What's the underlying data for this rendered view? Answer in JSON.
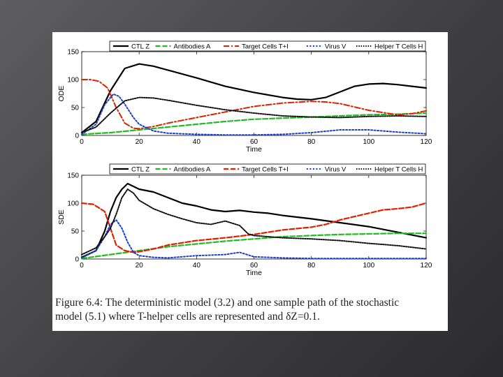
{
  "colors": {
    "ctl": "#000000",
    "antibodies": "#22bb22",
    "target": "#dd2200",
    "virus": "#1a3fcc",
    "helper": "#111111"
  },
  "caption": {
    "line1": "Figure 6.4: The deterministic model (3.2) and one sample path of the stochastic",
    "line2": "model (5.1) where T-helper cells are represented and δZ=0.1."
  },
  "chart_data": [
    {
      "type": "line",
      "xlabel": "Time",
      "ylabel": "ODE",
      "xlim": [
        0,
        120
      ],
      "ylim": [
        0,
        150
      ],
      "xticks": [
        "0",
        "20",
        "40",
        "60",
        "80",
        "100",
        "120"
      ],
      "yticks": [
        "0",
        "50",
        "100",
        "150"
      ],
      "legend": "top",
      "series": [
        {
          "name": "CTL Z",
          "style": "solid",
          "color": "#000000",
          "x": [
            0,
            5,
            10,
            15,
            20,
            25,
            30,
            40,
            50,
            60,
            70,
            75,
            80,
            85,
            90,
            95,
            100,
            105,
            110,
            115,
            120
          ],
          "y": [
            5,
            25,
            80,
            120,
            128,
            124,
            117,
            103,
            88,
            77,
            68,
            65,
            64,
            68,
            78,
            88,
            92,
            93,
            91,
            88,
            85
          ]
        },
        {
          "name": "Antibodies A",
          "style": "dashed",
          "color": "#22bb22",
          "x": [
            0,
            10,
            20,
            30,
            40,
            50,
            60,
            70,
            80,
            90,
            100,
            110,
            120
          ],
          "y": [
            2,
            5,
            10,
            15,
            20,
            25,
            29,
            31,
            33,
            35,
            37,
            38,
            40
          ]
        },
        {
          "name": "Target Cells T+I",
          "style": "dashdot",
          "color": "#dd2200",
          "x": [
            0,
            3,
            6,
            9,
            12,
            15,
            18,
            20,
            25,
            30,
            40,
            50,
            60,
            70,
            80,
            85,
            90,
            100,
            110,
            115,
            120
          ],
          "y": [
            100,
            100,
            97,
            85,
            50,
            22,
            13,
            12,
            16,
            22,
            32,
            42,
            52,
            58,
            61,
            60,
            57,
            45,
            37,
            39,
            44
          ]
        },
        {
          "name": "Virus V",
          "style": "dotted",
          "color": "#1a3fcc",
          "x": [
            0,
            5,
            8,
            11,
            13,
            15,
            18,
            20,
            25,
            30,
            40,
            50,
            60,
            70,
            80,
            90,
            100,
            105,
            110,
            120
          ],
          "y": [
            2,
            20,
            55,
            74,
            70,
            56,
            32,
            20,
            8,
            4,
            2,
            1,
            1,
            2,
            5,
            10,
            10,
            8,
            6,
            3
          ]
        },
        {
          "name": "Helper T Cells H",
          "style": "densedot",
          "color": "#111111",
          "x": [
            0,
            5,
            10,
            15,
            20,
            25,
            30,
            40,
            50,
            60,
            70,
            80,
            90,
            100,
            110,
            120
          ],
          "y": [
            5,
            15,
            40,
            62,
            68,
            67,
            63,
            54,
            46,
            40,
            35,
            33,
            32,
            34,
            35,
            34
          ]
        }
      ]
    },
    {
      "type": "line",
      "xlabel": "Time",
      "ylabel": "SDE",
      "xlim": [
        0,
        120
      ],
      "ylim": [
        0,
        150
      ],
      "xticks": [
        "0",
        "20",
        "40",
        "60",
        "80",
        "100",
        "120"
      ],
      "yticks": [
        "0",
        "50",
        "100",
        "150"
      ],
      "legend": "top",
      "series": [
        {
          "name": "CTL Z",
          "style": "solid",
          "color": "#000000",
          "x": [
            0,
            5,
            8,
            10,
            12,
            14,
            16,
            18,
            20,
            25,
            30,
            35,
            40,
            45,
            50,
            55,
            60,
            65,
            70,
            75,
            80,
            90,
            100,
            110,
            120
          ],
          "y": [
            3,
            15,
            50,
            85,
            110,
            125,
            135,
            130,
            125,
            120,
            110,
            100,
            95,
            88,
            85,
            87,
            84,
            82,
            78,
            75,
            72,
            65,
            58,
            48,
            38
          ]
        },
        {
          "name": "Antibodies A",
          "style": "dashed",
          "color": "#22bb22",
          "x": [
            0,
            10,
            20,
            30,
            40,
            50,
            60,
            70,
            80,
            90,
            100,
            110,
            120
          ],
          "y": [
            1,
            8,
            15,
            22,
            27,
            32,
            36,
            40,
            42,
            44,
            45,
            46,
            46
          ]
        },
        {
          "name": "Target Cells T+I",
          "style": "dashed",
          "color": "#dd2200",
          "x": [
            0,
            4,
            8,
            10,
            12,
            15,
            18,
            20,
            25,
            30,
            40,
            50,
            60,
            70,
            80,
            85,
            90,
            100,
            105,
            110,
            115,
            120
          ],
          "y": [
            100,
            98,
            85,
            55,
            25,
            15,
            12,
            13,
            18,
            25,
            33,
            38,
            44,
            52,
            57,
            62,
            70,
            82,
            88,
            90,
            93,
            100
          ]
        },
        {
          "name": "Virus V",
          "style": "dotted",
          "color": "#1a3fcc",
          "x": [
            0,
            5,
            8,
            10,
            12,
            14,
            16,
            18,
            20,
            25,
            30,
            40,
            50,
            55,
            60,
            70,
            80,
            100,
            120
          ],
          "y": [
            2,
            15,
            40,
            62,
            70,
            55,
            30,
            12,
            6,
            3,
            2,
            6,
            8,
            12,
            4,
            2,
            1,
            1,
            1
          ]
        },
        {
          "name": "Helper T Cells H",
          "style": "densedot",
          "color": "#111111",
          "x": [
            0,
            5,
            8,
            10,
            12,
            14,
            16,
            18,
            20,
            25,
            30,
            35,
            40,
            45,
            50,
            55,
            58,
            60,
            65,
            70,
            80,
            90,
            100,
            110,
            120
          ],
          "y": [
            8,
            20,
            40,
            55,
            80,
            110,
            125,
            118,
            105,
            90,
            80,
            72,
            65,
            62,
            68,
            60,
            45,
            42,
            40,
            38,
            36,
            33,
            28,
            24,
            18
          ]
        }
      ]
    }
  ]
}
